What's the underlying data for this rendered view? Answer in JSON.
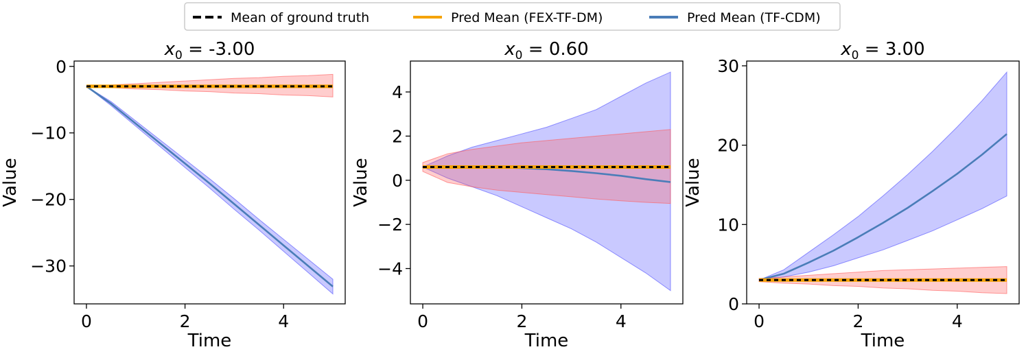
{
  "legend": {
    "position": "top-center",
    "entries": [
      {
        "label": "Mean of ground truth",
        "color": "#000000",
        "style": "dashed"
      },
      {
        "label": "Pred Mean (FEX-TF-DM)",
        "color": "#f5a300",
        "style": "solid"
      },
      {
        "label": "Pred Mean (TF-CDM)",
        "color": "#4a7db8",
        "style": "solid"
      }
    ]
  },
  "colors": {
    "truth": "#000000",
    "fex": "#f5a300",
    "tfcdm": "#4a7db8",
    "fex_band": "#ff5a5a",
    "tfcdm_band": "#4d4dff"
  },
  "chart_data": [
    {
      "type": "line",
      "title_prefix": "x",
      "title_sub": "0",
      "title_suffix": " = -3.00",
      "xlabel": "Time",
      "ylabel": "Value",
      "xlim": [
        -0.25,
        5.25
      ],
      "ylim": [
        -35.7,
        0.8
      ],
      "xticks": [
        0,
        2,
        4
      ],
      "xtick_labels": [
        "0",
        "2",
        "4"
      ],
      "yticks": [
        0,
        -10,
        -20,
        -30
      ],
      "ytick_labels": [
        "0",
        "−10",
        "−20",
        "−30"
      ],
      "x": [
        0,
        0.5,
        1,
        1.5,
        2,
        2.5,
        3,
        3.5,
        4,
        4.5,
        5
      ],
      "series": [
        {
          "name": "Mean of ground truth",
          "values": [
            -3,
            -3,
            -3,
            -3,
            -3,
            -3,
            -3,
            -3,
            -3,
            -3,
            -3
          ]
        },
        {
          "name": "Pred Mean (FEX-TF-DM)",
          "values": [
            -3,
            -3,
            -3,
            -3,
            -3,
            -3,
            -3,
            -3,
            -3,
            -3,
            -3
          ]
        },
        {
          "name": "Pred Mean (TF-CDM)",
          "values": [
            -3,
            -5.6,
            -8.6,
            -11.6,
            -14.6,
            -17.6,
            -20.7,
            -23.8,
            -26.9,
            -30.0,
            -33.1
          ]
        }
      ],
      "bands": [
        {
          "name": "TF-CDM band",
          "lower": [
            -3,
            -5.9,
            -9.0,
            -12.1,
            -15.2,
            -18.3,
            -21.5,
            -24.6,
            -27.8,
            -31.0,
            -34.2
          ],
          "upper": [
            -3,
            -5.3,
            -8.2,
            -11.1,
            -14.0,
            -16.9,
            -19.9,
            -23.0,
            -26.0,
            -29.0,
            -32.0
          ]
        },
        {
          "name": "FEX-TF-DM band",
          "lower": [
            -3,
            -3.2,
            -3.4,
            -3.5,
            -3.7,
            -3.8,
            -4.0,
            -4.1,
            -4.3,
            -4.4,
            -4.6
          ],
          "upper": [
            -3,
            -2.8,
            -2.6,
            -2.4,
            -2.2,
            -2.0,
            -1.8,
            -1.7,
            -1.5,
            -1.4,
            -1.2
          ]
        }
      ]
    },
    {
      "type": "line",
      "title_prefix": "x",
      "title_sub": "0",
      "title_suffix": " = 0.60",
      "xlabel": "Time",
      "ylabel": "Value",
      "xlim": [
        -0.25,
        5.25
      ],
      "ylim": [
        -5.6,
        5.4
      ],
      "xticks": [
        0,
        2,
        4
      ],
      "xtick_labels": [
        "0",
        "2",
        "4"
      ],
      "yticks": [
        4,
        2,
        0,
        -2,
        -4
      ],
      "ytick_labels": [
        "4",
        "2",
        "0",
        "−2",
        "−4"
      ],
      "x": [
        0,
        0.5,
        1,
        1.5,
        2,
        2.5,
        3,
        3.5,
        4,
        4.5,
        5
      ],
      "series": [
        {
          "name": "Mean of ground truth",
          "values": [
            0.6,
            0.6,
            0.6,
            0.6,
            0.6,
            0.6,
            0.6,
            0.6,
            0.6,
            0.6,
            0.6
          ]
        },
        {
          "name": "Pred Mean (FEX-TF-DM)",
          "values": [
            0.6,
            0.6,
            0.6,
            0.6,
            0.6,
            0.6,
            0.6,
            0.6,
            0.6,
            0.6,
            0.6
          ]
        },
        {
          "name": "Pred Mean (TF-CDM)",
          "values": [
            0.6,
            0.6,
            0.6,
            0.58,
            0.55,
            0.5,
            0.42,
            0.32,
            0.2,
            0.05,
            -0.08
          ]
        }
      ],
      "bands": [
        {
          "name": "TF-CDM band",
          "lower": [
            0.6,
            0.1,
            -0.3,
            -0.7,
            -1.2,
            -1.7,
            -2.2,
            -2.8,
            -3.5,
            -4.2,
            -5.0
          ],
          "upper": [
            0.6,
            1.1,
            1.5,
            1.8,
            2.1,
            2.4,
            2.8,
            3.2,
            3.8,
            4.4,
            4.9
          ]
        },
        {
          "name": "FEX-TF-DM band",
          "lower": [
            0.4,
            -0.1,
            -0.3,
            -0.45,
            -0.55,
            -0.65,
            -0.75,
            -0.85,
            -0.93,
            -1.0,
            -1.05
          ],
          "upper": [
            0.8,
            1.2,
            1.4,
            1.55,
            1.7,
            1.8,
            1.9,
            2.0,
            2.1,
            2.2,
            2.3
          ]
        }
      ]
    },
    {
      "type": "line",
      "title_prefix": "x",
      "title_sub": "0",
      "title_suffix": " = 3.00",
      "xlabel": "Time",
      "ylabel": "Value",
      "xlim": [
        -0.25,
        5.25
      ],
      "ylim": [
        0,
        30.6
      ],
      "xticks": [
        0,
        2,
        4
      ],
      "xtick_labels": [
        "0",
        "2",
        "4"
      ],
      "yticks": [
        0,
        10,
        20,
        30
      ],
      "ytick_labels": [
        "0",
        "10",
        "20",
        "30"
      ],
      "x": [
        0,
        0.5,
        1,
        1.5,
        2,
        2.5,
        3,
        3.5,
        4,
        4.5,
        5
      ],
      "series": [
        {
          "name": "Mean of ground truth",
          "values": [
            3,
            3,
            3,
            3,
            3,
            3,
            3,
            3,
            3,
            3,
            3
          ]
        },
        {
          "name": "Pred Mean (FEX-TF-DM)",
          "values": [
            3,
            3,
            3,
            3,
            3,
            3,
            3,
            3,
            3,
            3,
            3
          ]
        },
        {
          "name": "Pred Mean (TF-CDM)",
          "values": [
            3,
            3.8,
            5.2,
            6.7,
            8.4,
            10.2,
            12.1,
            14.2,
            16.4,
            18.8,
            21.4
          ]
        }
      ],
      "bands": [
        {
          "name": "TF-CDM band",
          "lower": [
            3,
            3.4,
            4.0,
            4.8,
            5.8,
            6.8,
            8.0,
            9.2,
            10.6,
            12.0,
            13.6
          ],
          "upper": [
            3,
            4.3,
            6.5,
            8.7,
            11.0,
            13.6,
            16.3,
            19.2,
            22.3,
            25.6,
            29.2
          ]
        },
        {
          "name": "FEX-TF-DM band",
          "lower": [
            2.8,
            2.6,
            2.5,
            2.3,
            2.2,
            2.0,
            1.9,
            1.7,
            1.6,
            1.4,
            1.3
          ],
          "upper": [
            3.2,
            3.4,
            3.6,
            3.8,
            4.0,
            4.2,
            4.3,
            4.4,
            4.5,
            4.6,
            4.7
          ]
        }
      ]
    }
  ]
}
